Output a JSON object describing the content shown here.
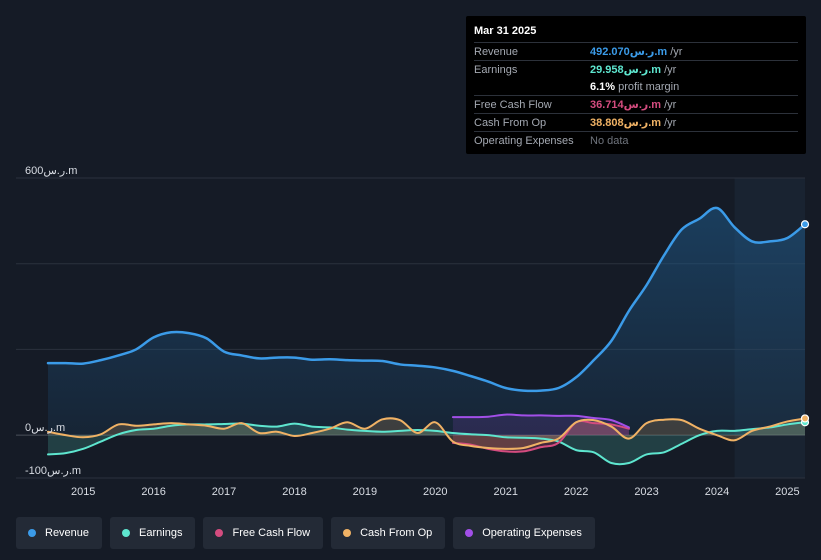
{
  "tooltip": {
    "date": "Mar 31 2025",
    "rows": [
      {
        "label": "Revenue",
        "value": "492.070ر.س.m",
        "unit": "/yr",
        "color": "#3b9be8"
      },
      {
        "label": "Earnings",
        "value": "29.958ر.س.m",
        "unit": "/yr",
        "color": "#5ee6cf"
      },
      {
        "label": "",
        "value": "6.1%",
        "unit": "profit margin",
        "color": "#ffffff"
      },
      {
        "label": "Free Cash Flow",
        "value": "36.714ر.س.m",
        "unit": "/yr",
        "color": "#d44c7f"
      },
      {
        "label": "Cash From Op",
        "value": "38.808ر.س.m",
        "unit": "/yr",
        "color": "#f0b265"
      },
      {
        "label": "Operating Expenses",
        "value": "No data",
        "unit": "",
        "color": "#70757e"
      }
    ]
  },
  "legend": [
    {
      "label": "Revenue",
      "color": "#3b9be8"
    },
    {
      "label": "Earnings",
      "color": "#5ee6cf"
    },
    {
      "label": "Free Cash Flow",
      "color": "#d44c7f"
    },
    {
      "label": "Cash From Op",
      "color": "#f0b265"
    },
    {
      "label": "Operating Expenses",
      "color": "#a24fe8"
    }
  ],
  "chart_data": {
    "type": "area",
    "title": "",
    "xlabel": "",
    "ylabel": "",
    "y_tick_labels": [
      "600ر.س.m",
      "0ر.س.m",
      "-100ر.س.m"
    ],
    "ylim": [
      -100,
      600
    ],
    "xlim": [
      2014.5,
      2025.25
    ],
    "x_ticks": [
      2015,
      2016,
      2017,
      2018,
      2019,
      2020,
      2021,
      2022,
      2023,
      2024,
      2025
    ],
    "highlight_start": 2024.25,
    "series": [
      {
        "name": "Revenue",
        "color": "#3b9be8",
        "x": [
          2014.5,
          2014.75,
          2015.0,
          2015.25,
          2015.5,
          2015.75,
          2016.0,
          2016.25,
          2016.5,
          2016.75,
          2017.0,
          2017.25,
          2017.5,
          2017.75,
          2018.0,
          2018.25,
          2018.5,
          2018.75,
          2019.0,
          2019.25,
          2019.5,
          2019.75,
          2020.0,
          2020.25,
          2020.5,
          2020.75,
          2021.0,
          2021.25,
          2021.5,
          2021.75,
          2022.0,
          2022.25,
          2022.5,
          2022.75,
          2023.0,
          2023.25,
          2023.5,
          2023.75,
          2024.0,
          2024.25,
          2024.5,
          2024.75,
          2025.0,
          2025.25
        ],
        "values": [
          168,
          168,
          167,
          175,
          186,
          200,
          228,
          240,
          238,
          226,
          195,
          186,
          179,
          181,
          181,
          176,
          177,
          175,
          174,
          173,
          165,
          162,
          158,
          150,
          138,
          125,
          110,
          104,
          104,
          110,
          135,
          175,
          220,
          290,
          350,
          420,
          480,
          505,
          530,
          485,
          452,
          452,
          460,
          492
        ]
      },
      {
        "name": "Earnings",
        "color": "#5ee6cf",
        "x": [
          2014.5,
          2014.75,
          2015.0,
          2015.25,
          2015.5,
          2015.75,
          2016.0,
          2016.25,
          2016.5,
          2016.75,
          2017.0,
          2017.25,
          2017.5,
          2017.75,
          2018.0,
          2018.25,
          2018.5,
          2018.75,
          2019.0,
          2019.25,
          2019.5,
          2019.75,
          2020.0,
          2020.25,
          2020.5,
          2020.75,
          2021.0,
          2021.25,
          2021.5,
          2021.75,
          2022.0,
          2022.25,
          2022.5,
          2022.75,
          2023.0,
          2023.25,
          2023.5,
          2023.75,
          2024.0,
          2024.25,
          2024.5,
          2024.75,
          2025.0,
          2025.25
        ],
        "values": [
          -45,
          -42,
          -32,
          -15,
          2,
          12,
          15,
          22,
          25,
          25,
          26,
          27,
          22,
          20,
          27,
          20,
          18,
          13,
          10,
          8,
          10,
          12,
          10,
          5,
          2,
          0,
          -5,
          -6,
          -8,
          -15,
          -35,
          -40,
          -65,
          -65,
          -45,
          -40,
          -20,
          0,
          10,
          10,
          14,
          18,
          25,
          30
        ]
      },
      {
        "name": "Free Cash Flow",
        "color": "#d44c7f",
        "x": [
          2020.25,
          2020.5,
          2020.75,
          2021.0,
          2021.25,
          2021.5,
          2021.75,
          2022.0,
          2022.25,
          2022.5,
          2022.75
        ],
        "values": [
          -18,
          -22,
          -32,
          -38,
          -38,
          -28,
          -18,
          30,
          28,
          25,
          15
        ]
      },
      {
        "name": "Cash From Op",
        "color": "#f0b265",
        "x": [
          2014.5,
          2014.75,
          2015.0,
          2015.25,
          2015.5,
          2015.75,
          2016.0,
          2016.25,
          2016.5,
          2016.75,
          2017.0,
          2017.25,
          2017.5,
          2017.75,
          2018.0,
          2018.25,
          2018.5,
          2018.75,
          2019.0,
          2019.25,
          2019.5,
          2019.75,
          2020.0,
          2020.25,
          2020.5,
          2020.75,
          2021.0,
          2021.25,
          2021.5,
          2021.75,
          2022.0,
          2022.25,
          2022.5,
          2022.75,
          2023.0,
          2023.25,
          2023.5,
          2023.75,
          2024.0,
          2024.25,
          2024.5,
          2024.75,
          2025.0,
          2025.25
        ],
        "values": [
          8,
          0,
          -5,
          2,
          25,
          22,
          25,
          28,
          25,
          22,
          15,
          28,
          5,
          8,
          -2,
          5,
          15,
          30,
          15,
          37,
          35,
          5,
          30,
          -15,
          -25,
          -30,
          -32,
          -30,
          -18,
          -8,
          30,
          35,
          20,
          -8,
          28,
          36,
          35,
          15,
          0,
          -12,
          10,
          20,
          32,
          39
        ]
      },
      {
        "name": "Operating Expenses",
        "color": "#a24fe8",
        "x": [
          2020.25,
          2020.5,
          2020.75,
          2021.0,
          2021.25,
          2021.5,
          2021.75,
          2022.0,
          2022.25,
          2022.5,
          2022.75
        ],
        "values": [
          42,
          42,
          43,
          48,
          46,
          46,
          45,
          45,
          40,
          35,
          18
        ]
      }
    ]
  }
}
